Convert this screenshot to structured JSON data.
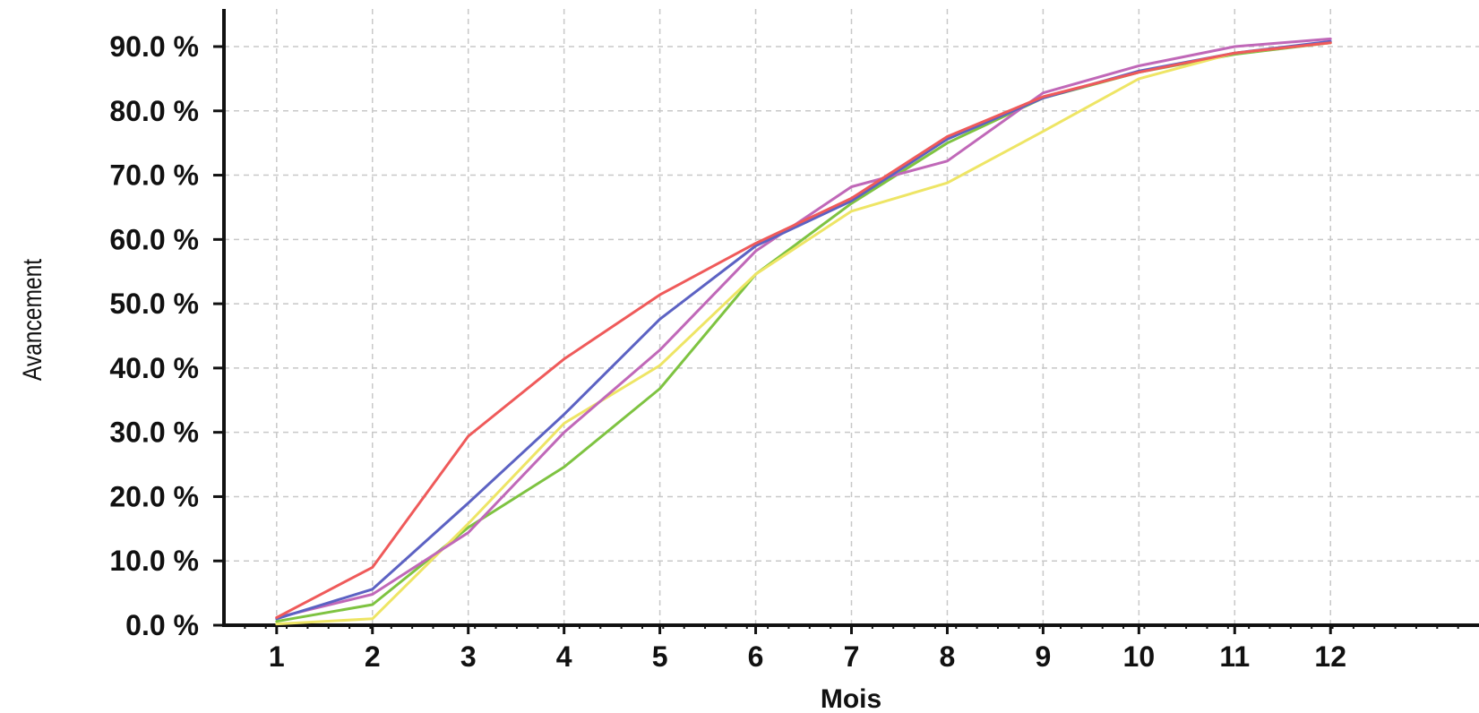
{
  "chart_data": {
    "type": "line",
    "title": "",
    "xlabel": "Mois",
    "ylabel": "Avancement",
    "x": [
      1,
      2,
      3,
      4,
      5,
      6,
      7,
      8,
      9,
      10,
      11,
      12
    ],
    "xlim": [
      0.45,
      13.55
    ],
    "ylim": [
      0,
      90
    ],
    "ytick_values": [
      0,
      10,
      20,
      30,
      40,
      50,
      60,
      70,
      80,
      90
    ],
    "ytick_labels": [
      "0.0 %",
      "10.0 %",
      "20.0 %",
      "30.0 %",
      "40.0 %",
      "50.0 %",
      "60.0 %",
      "70.0 %",
      "80.0 %",
      "90.0 %"
    ],
    "xtick_labels": [
      "1",
      "2",
      "3",
      "4",
      "5",
      "6",
      "7",
      "8",
      "9",
      "10",
      "11",
      "12"
    ],
    "grid": true,
    "legend": "none",
    "series": [
      {
        "color": "#7ec341",
        "values": [
          0.6,
          3.2,
          15.2,
          24.6,
          36.8,
          54.6,
          65.6,
          75.0,
          82.0,
          86.0,
          88.8,
          90.6
        ]
      },
      {
        "color": "#eee565",
        "values": [
          0.2,
          1.0,
          15.8,
          31.4,
          40.4,
          54.6,
          64.4,
          68.8,
          76.8,
          85.0,
          89.0,
          90.6
        ]
      },
      {
        "color": "#c068b8",
        "values": [
          1.2,
          4.8,
          14.4,
          30.0,
          42.8,
          58.2,
          68.2,
          72.2,
          82.8,
          87.0,
          90.0,
          91.2
        ]
      },
      {
        "color": "#5c62c3",
        "values": [
          1.0,
          5.6,
          19.0,
          32.8,
          47.6,
          59.0,
          66.0,
          75.6,
          82.0,
          86.2,
          89.0,
          90.8
        ]
      },
      {
        "color": "#ef5a5a",
        "values": [
          1.2,
          9.0,
          29.4,
          41.4,
          51.4,
          59.4,
          66.4,
          76.0,
          82.2,
          86.0,
          89.0,
          90.6
        ]
      }
    ]
  }
}
